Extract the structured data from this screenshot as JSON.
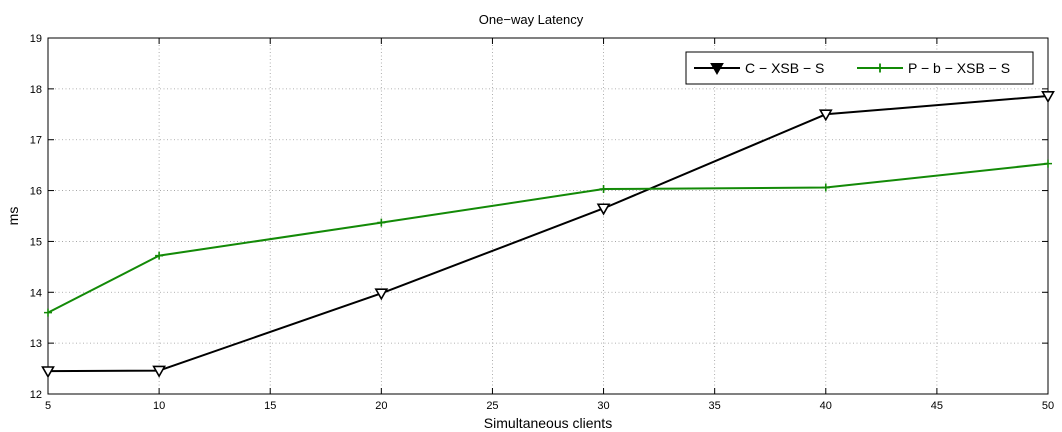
{
  "chart_data": {
    "type": "line",
    "title": "One−way Latency",
    "xlabel": "Simultaneous clients",
    "ylabel": "ms",
    "xlim": [
      5,
      50
    ],
    "ylim": [
      12,
      19
    ],
    "xticks": [
      5,
      10,
      15,
      20,
      25,
      30,
      35,
      40,
      45,
      50
    ],
    "yticks": [
      12,
      13,
      14,
      15,
      16,
      17,
      18,
      19
    ],
    "grid": true,
    "legend_position": "top-right",
    "series": [
      {
        "name": "C − XSB − S",
        "color": "#000000",
        "marker": "triangle-down",
        "x": [
          5,
          10,
          20,
          30,
          40,
          50
        ],
        "y": [
          12.45,
          12.46,
          13.98,
          15.65,
          17.5,
          17.86
        ]
      },
      {
        "name": "P − b − XSB − S",
        "color": "#138a07",
        "marker": "plus",
        "x": [
          5,
          10,
          20,
          30,
          40,
          50
        ],
        "y": [
          13.6,
          14.72,
          15.37,
          16.03,
          16.06,
          16.53
        ]
      }
    ]
  }
}
